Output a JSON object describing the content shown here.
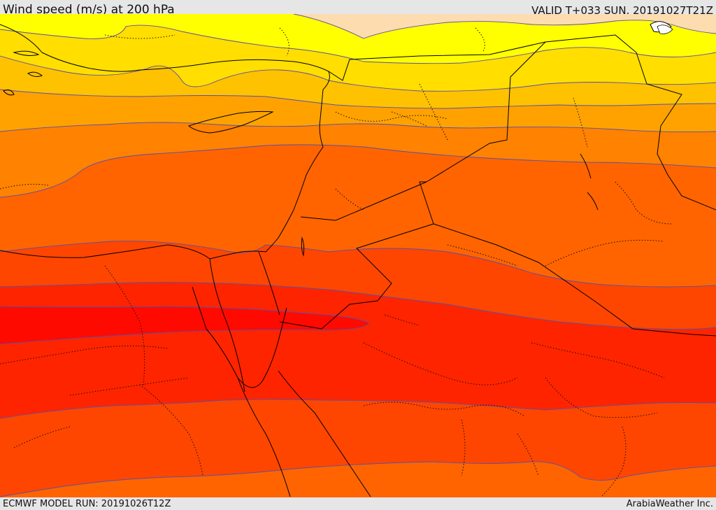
{
  "header": {
    "title": "Wind speed (m/s) at 200 hPa",
    "valid": "VALID T+033 SUN. 20191027T21Z"
  },
  "footer": {
    "model_run": "ECMWF MODEL RUN: 20191026T12Z",
    "credit": "ArabiaWeather Inc."
  },
  "map": {
    "region": "Eastern Mediterranean, Egypt, Levant and Arabia",
    "field": "wind speed at 200 hPa",
    "band_colors": [
      "#fddcb0",
      "#ffff00",
      "#ffde00",
      "#ffc200",
      "#ffa200",
      "#ff8200",
      "#ff6400",
      "#ff4600",
      "#ff2400",
      "#ff0a00"
    ],
    "contour_color": "#5a4fa8",
    "coastline_color": "#000000",
    "border_style": "dotted"
  }
}
